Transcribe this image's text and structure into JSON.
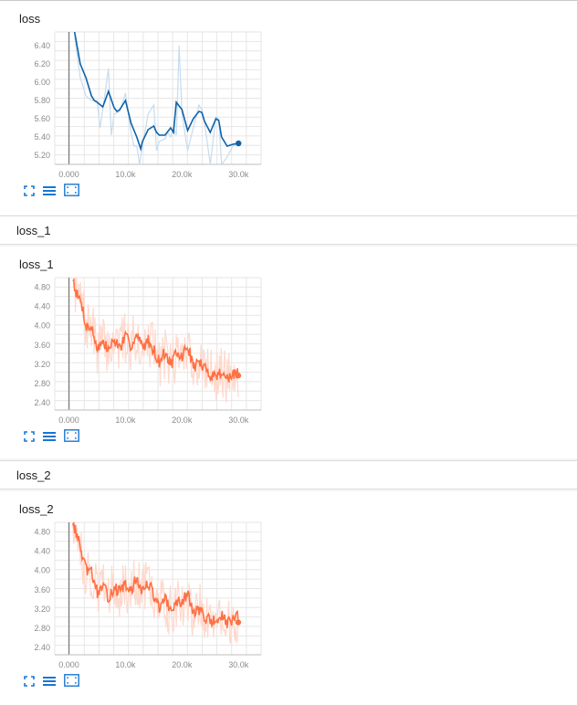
{
  "sections": [
    {
      "header": "",
      "card_title": "loss"
    },
    {
      "header": "loss_1",
      "card_title": "loss_1"
    },
    {
      "header": "loss_2",
      "card_title": "loss_2"
    }
  ],
  "toolbar_icons": [
    "fit-domain-icon",
    "data-selection-icon",
    "fullscreen-icon"
  ],
  "chart_data": [
    {
      "type": "line",
      "title": "loss",
      "color": "#0f62a8",
      "raw_color": "#c6dcee",
      "ylim": [
        5.1,
        6.55
      ],
      "xlim": [
        -2500,
        34000
      ],
      "yticks": [
        5.2,
        5.4,
        5.6,
        5.8,
        6.0,
        6.2,
        6.4
      ],
      "ytick_labels": [
        "5.20",
        "5.40",
        "5.60",
        "5.80",
        "6.00",
        "6.20",
        "6.40"
      ],
      "xticks": [
        0,
        10000,
        20000,
        30000
      ],
      "xtick_labels": [
        "0.000",
        "10.0k",
        "20.0k",
        "30.0k"
      ],
      "grid": true,
      "series": [
        {
          "x": [
            1000,
            2000,
            3000,
            4000,
            4500,
            5000,
            6000,
            7000,
            8000,
            8500,
            9000,
            10000,
            11000,
            12000,
            12700,
            13000,
            14000,
            15000,
            15500,
            16000,
            16600,
            17000,
            18000,
            18500,
            19000,
            20000,
            21000,
            22000,
            23000,
            23500,
            24000,
            25000,
            26000,
            26500,
            27000,
            28000,
            29000,
            30000
          ],
          "y": [
            6.55,
            6.2,
            6.05,
            5.85,
            5.8,
            5.78,
            5.73,
            5.9,
            5.72,
            5.68,
            5.7,
            5.8,
            5.55,
            5.4,
            5.27,
            5.35,
            5.48,
            5.52,
            5.45,
            5.42,
            5.42,
            5.42,
            5.5,
            5.45,
            5.78,
            5.7,
            5.47,
            5.6,
            5.68,
            5.67,
            5.57,
            5.45,
            5.6,
            5.58,
            5.4,
            5.3,
            5.32,
            5.33
          ]
        },
        {
          "x": [
            1000,
            2000,
            3000,
            4000,
            5000,
            5500,
            6000,
            7000,
            7500,
            8000,
            9000,
            10000,
            11000,
            11500,
            12000,
            12500,
            13000,
            14000,
            15000,
            15500,
            16000,
            17000,
            17500,
            18000,
            18500,
            19000,
            19500,
            20000,
            21000,
            22000,
            23000,
            23500,
            24000,
            25000,
            26000,
            26500,
            27000,
            28000,
            29000,
            30000
          ],
          "y": [
            6.5,
            6.05,
            5.85,
            5.8,
            5.8,
            5.5,
            5.7,
            6.15,
            5.42,
            5.65,
            5.68,
            5.88,
            5.45,
            5.3,
            5.3,
            5.1,
            5.3,
            5.65,
            5.75,
            5.25,
            5.35,
            5.38,
            5.45,
            5.4,
            5.5,
            5.42,
            6.4,
            5.65,
            5.25,
            5.5,
            5.75,
            5.7,
            5.55,
            5.1,
            5.62,
            5.6,
            5.1,
            5.18,
            5.3,
            5.33
          ]
        }
      ]
    },
    {
      "type": "line",
      "title": "loss_1",
      "color": "#ff7043",
      "raw_color": "#ffd8cc",
      "ylim": [
        2.25,
        5.0
      ],
      "xlim": [
        -2500,
        34000
      ],
      "yticks": [
        2.4,
        2.8,
        3.2,
        3.6,
        4.0,
        4.4,
        4.8
      ],
      "ytick_labels": [
        "2.40",
        "2.80",
        "3.20",
        "3.60",
        "4.00",
        "4.40",
        "4.80"
      ],
      "xticks": [
        0,
        10000,
        20000,
        30000
      ],
      "xtick_labels": [
        "0.000",
        "10.0k",
        "20.0k",
        "30.0k"
      ],
      "grid": true,
      "series_spec": {
        "smoothed_keyframes": [
          [
            700,
            5.0
          ],
          [
            1500,
            4.6
          ],
          [
            2200,
            4.5
          ],
          [
            3000,
            4.0
          ],
          [
            4000,
            3.95
          ],
          [
            5000,
            3.55
          ],
          [
            6000,
            3.65
          ],
          [
            7000,
            3.5
          ],
          [
            8000,
            3.7
          ],
          [
            9000,
            3.55
          ],
          [
            10000,
            3.75
          ],
          [
            11000,
            3.6
          ],
          [
            12000,
            3.8
          ],
          [
            13000,
            3.55
          ],
          [
            14000,
            3.7
          ],
          [
            15000,
            3.5
          ],
          [
            16000,
            3.25
          ],
          [
            17000,
            3.45
          ],
          [
            18000,
            3.2
          ],
          [
            19000,
            3.4
          ],
          [
            20000,
            3.35
          ],
          [
            21000,
            3.6
          ],
          [
            22000,
            3.15
          ],
          [
            23000,
            3.25
          ],
          [
            24000,
            3.1
          ],
          [
            25000,
            3.0
          ],
          [
            26000,
            2.95
          ],
          [
            27000,
            3.05
          ],
          [
            28000,
            2.9
          ],
          [
            29000,
            2.95
          ],
          [
            30000,
            3.05
          ]
        ],
        "x_start": 700,
        "x_end": 30000,
        "step": 150,
        "noise": 0.13,
        "raw_noise": 0.55,
        "seed": 7
      }
    },
    {
      "type": "line",
      "title": "loss_2",
      "color": "#ff7043",
      "raw_color": "#ffd8cc",
      "ylim": [
        2.25,
        5.0
      ],
      "xlim": [
        -2500,
        34000
      ],
      "yticks": [
        2.4,
        2.8,
        3.2,
        3.6,
        4.0,
        4.4,
        4.8
      ],
      "ytick_labels": [
        "2.40",
        "2.80",
        "3.20",
        "3.60",
        "4.00",
        "4.40",
        "4.80"
      ],
      "xticks": [
        0,
        10000,
        20000,
        30000
      ],
      "xtick_labels": [
        "0.000",
        "10.0k",
        "20.0k",
        "30.0k"
      ],
      "grid": true,
      "series_spec": {
        "smoothed_keyframes": [
          [
            700,
            5.0
          ],
          [
            1500,
            4.7
          ],
          [
            2200,
            4.4
          ],
          [
            3000,
            4.0
          ],
          [
            4000,
            3.95
          ],
          [
            5000,
            3.55
          ],
          [
            6000,
            3.65
          ],
          [
            7000,
            3.45
          ],
          [
            8000,
            3.65
          ],
          [
            9000,
            3.55
          ],
          [
            10000,
            3.7
          ],
          [
            11000,
            3.55
          ],
          [
            12000,
            3.85
          ],
          [
            13000,
            3.55
          ],
          [
            14000,
            3.75
          ],
          [
            15000,
            3.5
          ],
          [
            16000,
            3.2
          ],
          [
            17000,
            3.4
          ],
          [
            18000,
            3.15
          ],
          [
            19000,
            3.35
          ],
          [
            20000,
            3.3
          ],
          [
            21000,
            3.55
          ],
          [
            22000,
            3.1
          ],
          [
            23000,
            3.2
          ],
          [
            24000,
            3.05
          ],
          [
            25000,
            2.95
          ],
          [
            26000,
            2.95
          ],
          [
            27000,
            3.05
          ],
          [
            28000,
            2.9
          ],
          [
            29000,
            2.95
          ],
          [
            30000,
            3.05
          ]
        ],
        "x_start": 700,
        "x_end": 30000,
        "step": 150,
        "noise": 0.13,
        "raw_noise": 0.55,
        "seed": 13
      }
    }
  ]
}
